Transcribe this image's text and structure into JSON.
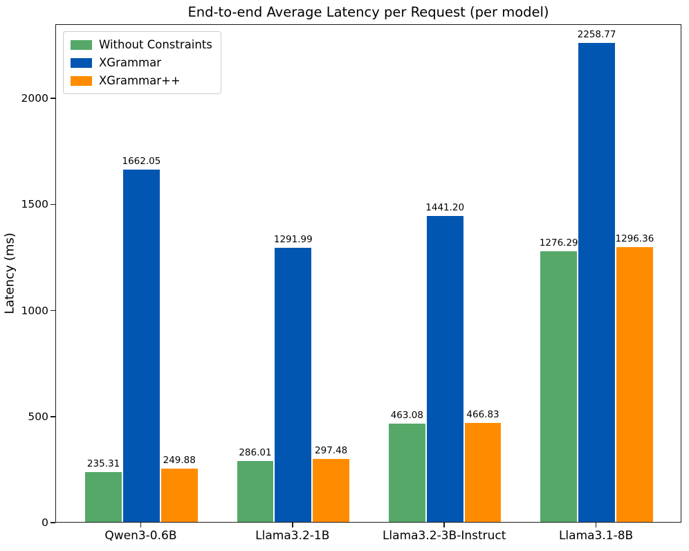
{
  "chart_data": {
    "type": "bar",
    "title": "End-to-end Average Latency per Request (per model)",
    "xlabel": "",
    "ylabel": "Latency (ms)",
    "categories": [
      "Qwen3-0.6B",
      "Llama3.2-1B",
      "Llama3.2-3B-Instruct",
      "Llama3.1-8B"
    ],
    "series": [
      {
        "name": "Without Constraints",
        "color": "#55a868",
        "values": [
          235.31,
          286.01,
          463.08,
          1276.29
        ]
      },
      {
        "name": "XGrammar",
        "color": "#0056b1",
        "values": [
          1662.05,
          1291.99,
          1441.2,
          2258.77
        ]
      },
      {
        "name": "XGrammar++",
        "color": "#ff8c00",
        "values": [
          249.88,
          297.48,
          466.83,
          1296.36
        ]
      }
    ],
    "bar_value_labels": [
      [
        "235.31",
        "286.01",
        "463.08",
        "1276.29"
      ],
      [
        "1662.05",
        "1291.99",
        "1441.20",
        "2258.77"
      ],
      [
        "249.88",
        "297.48",
        "466.83",
        "1296.36"
      ]
    ],
    "yticks": [
      0,
      500,
      1000,
      1500,
      2000
    ],
    "ylim": [
      0,
      2350
    ],
    "grid": false,
    "legend_position": "upper left",
    "spine_color": "#1a1a1a",
    "background_color": "#ffffff"
  }
}
